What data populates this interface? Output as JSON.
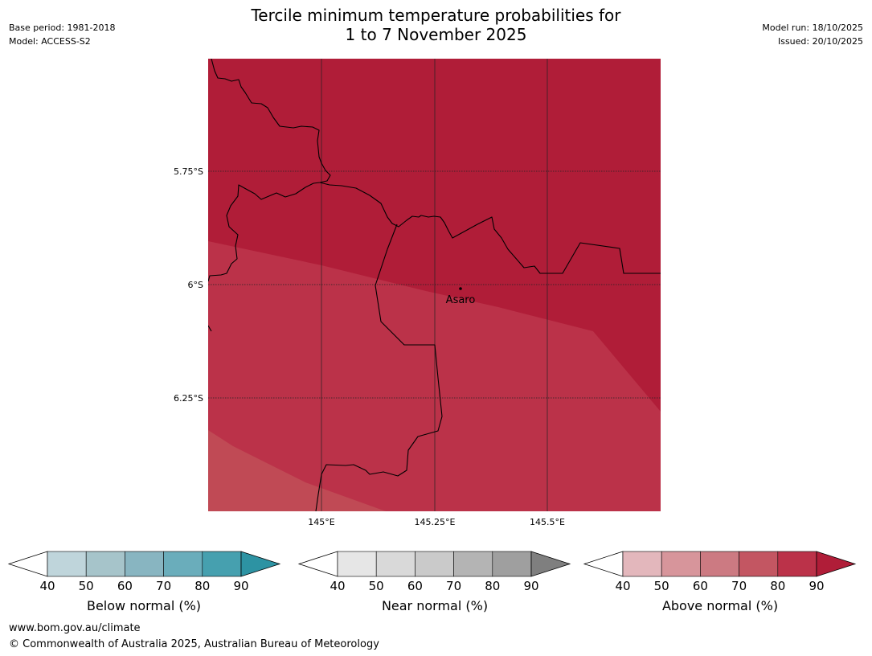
{
  "title_line1": "Tercile minimum temperature probabilities for",
  "title_line2": "1 to 7 November 2025",
  "meta_left": {
    "base_period": "Base period: 1981-2018",
    "model": "Model: ACCESS-S2"
  },
  "meta_right": {
    "model_run": "Model run: 18/10/2025",
    "issued": "Issued: 20/10/2025"
  },
  "map": {
    "place_label": "Asaro",
    "lat_labels": [
      "5.75°S",
      "6°S",
      "6.25°S"
    ],
    "lon_labels": [
      "145°E",
      "145.25°E",
      "145.5°E"
    ]
  },
  "colorbars": [
    {
      "label": "Below normal (%)",
      "ticks": [
        "40",
        "50",
        "60",
        "70",
        "80",
        "90"
      ],
      "colors": [
        "#bfd5db",
        "#a6c4ca",
        "#88b5c1",
        "#6aadbb",
        "#46a0af",
        "#2d93a3"
      ]
    },
    {
      "label": "Near normal (%)",
      "ticks": [
        "40",
        "50",
        "60",
        "70",
        "80",
        "90"
      ],
      "colors": [
        "#e6e6e6",
        "#d9d9d9",
        "#cacaca",
        "#b4b4b4",
        "#9f9f9f",
        "#7f7f7f"
      ]
    },
    {
      "label": "Above normal (%)",
      "ticks": [
        "40",
        "50",
        "60",
        "70",
        "80",
        "90"
      ],
      "colors": [
        "#e3b7bc",
        "#d7959b",
        "#cc7a82",
        "#c35662",
        "#bb3249",
        "#b01d38"
      ]
    }
  ],
  "field_colors": {
    "c90": "#b01d38",
    "c80": "#bb3249",
    "c70": "#c04a55"
  },
  "footer": {
    "url": "www.bom.gov.au/climate",
    "copyright": "© Commonwealth of Australia 2025, Australian Bureau of Meteorology"
  }
}
